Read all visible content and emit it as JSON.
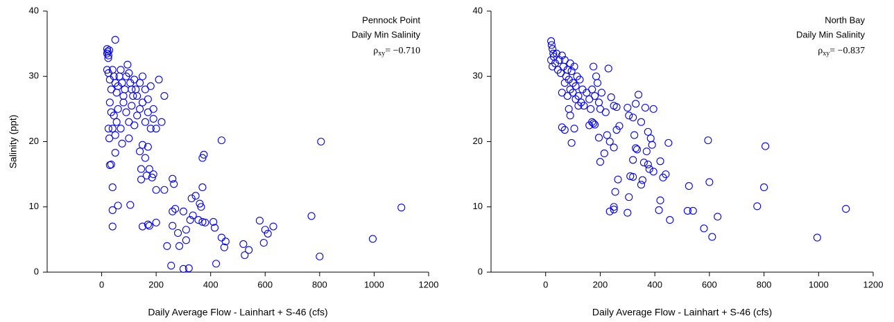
{
  "chart_data": [
    {
      "type": "scatter",
      "color": "#0000ff",
      "xlabel": "Daily Average Flow - Lainhart + S-46 (cfs)",
      "ylabel": "Salinity (ppt)",
      "annotations": [
        "Pennock Point",
        "Daily Min Salinity"
      ],
      "rho": {
        "symbol": "ρ",
        "subscript": "xy",
        "text": "= −0.710"
      },
      "xlim": [
        -200,
        1200
      ],
      "ylim": [
        0,
        40
      ],
      "xticks": [
        0,
        200,
        400,
        600,
        800,
        1000,
        1200
      ],
      "yticks": [
        0,
        10,
        20,
        30,
        40
      ],
      "x": [
        20,
        22,
        25,
        24,
        28,
        20,
        50,
        20,
        25,
        30,
        35,
        40,
        45,
        50,
        55,
        60,
        65,
        70,
        75,
        80,
        85,
        90,
        95,
        100,
        105,
        110,
        115,
        120,
        125,
        130,
        140,
        150,
        160,
        170,
        180,
        190,
        210,
        230,
        30,
        35,
        40,
        45,
        50,
        55,
        60,
        70,
        80,
        90,
        100,
        110,
        120,
        130,
        140,
        150,
        160,
        170,
        180,
        190,
        200,
        220,
        25,
        28,
        30,
        35,
        50,
        75,
        100,
        140,
        150,
        160,
        170,
        175,
        165,
        145,
        145,
        185,
        190,
        200,
        230,
        260,
        265,
        40,
        40,
        40,
        60,
        105,
        150,
        170,
        175,
        200,
        240,
        255,
        260,
        270,
        260,
        280,
        285,
        300,
        300,
        310,
        310,
        320,
        325,
        330,
        335,
        345,
        355,
        360,
        365,
        370,
        370,
        375,
        370,
        380,
        415,
        410,
        420,
        440,
        440,
        450,
        455,
        520,
        525,
        540,
        580,
        595,
        600,
        610,
        630,
        770,
        800,
        805,
        995,
        1100
      ],
      "y": [
        34.2,
        33.8,
        33.2,
        32.8,
        34,
        33.5,
        35.6,
        31,
        30.5,
        29.5,
        28,
        31,
        30,
        29,
        27.5,
        28.5,
        30,
        31,
        29,
        27,
        28,
        30,
        31.8,
        30.5,
        29,
        28,
        27,
        29.5,
        28,
        27,
        29,
        30,
        28,
        26.5,
        28.5,
        25,
        29.5,
        27,
        26,
        24.5,
        22,
        24,
        21,
        23,
        25,
        22,
        26,
        24.5,
        23,
        25.5,
        22.5,
        24,
        25,
        26,
        23,
        24.5,
        22,
        23.5,
        22,
        23,
        22,
        20.5,
        16.4,
        16.5,
        18.3,
        19.7,
        20.5,
        18.5,
        19.5,
        17.5,
        19.2,
        15.8,
        14.8,
        15.8,
        14.2,
        14.5,
        15,
        12.6,
        12.6,
        14.3,
        13.5,
        13,
        9.5,
        7,
        10.2,
        10.3,
        7,
        7.3,
        7.1,
        7.6,
        4,
        1,
        9.3,
        9.7,
        7.1,
        6,
        4,
        0.5,
        9.3,
        6.5,
        4.9,
        0.6,
        8,
        11.3,
        8.7,
        11.7,
        8,
        10.5,
        10,
        7.7,
        17.5,
        18,
        13,
        7.6,
        6.8,
        7.7,
        1.3,
        5.3,
        20.2,
        3.8,
        4.7,
        4.3,
        2.6,
        3.4,
        7.9,
        4.5,
        6.5,
        5.9,
        7,
        8.6,
        2.4,
        20,
        5.1,
        9.9
      ]
    },
    {
      "type": "scatter",
      "color": "#0000ff",
      "xlabel": "Daily Average Flow - Lainhart + S-46 (cfs)",
      "annotations": [
        "North Bay",
        "Daily Min Salinity"
      ],
      "rho": {
        "symbol": "ρ",
        "subscript": "xy",
        "text": "= −0.837"
      },
      "xlim": [
        -200,
        1200
      ],
      "ylim": [
        0,
        40
      ],
      "xticks": [
        0,
        200,
        400,
        600,
        800,
        1000,
        1200
      ],
      "yticks": [
        0,
        10,
        20,
        30,
        40
      ],
      "x": [
        20,
        22,
        25,
        28,
        30,
        20,
        25,
        35,
        40,
        45,
        50,
        55,
        60,
        65,
        70,
        75,
        80,
        85,
        90,
        95,
        100,
        105,
        110,
        115,
        120,
        125,
        130,
        135,
        140,
        150,
        160,
        165,
        170,
        175,
        180,
        185,
        190,
        195,
        200,
        205,
        220,
        230,
        240,
        250,
        260,
        60,
        70,
        80,
        90,
        100,
        110,
        120,
        85,
        90,
        60,
        70,
        95,
        105,
        160,
        170,
        175,
        180,
        195,
        200,
        215,
        225,
        235,
        250,
        260,
        270,
        300,
        305,
        320,
        325,
        330,
        340,
        350,
        365,
        375,
        385,
        395,
        370,
        375,
        380,
        390,
        395,
        360,
        355,
        350,
        330,
        335,
        320,
        320,
        310,
        305,
        300,
        265,
        255,
        250,
        235,
        250,
        420,
        420,
        415,
        430,
        440,
        450,
        455,
        520,
        525,
        540,
        580,
        595,
        600,
        610,
        630,
        775,
        800,
        805,
        995,
        1100
      ],
      "y": [
        35.4,
        34.8,
        34.2,
        33.5,
        33,
        32.5,
        31.5,
        32,
        33.5,
        31,
        32.5,
        30.5,
        33.2,
        31.5,
        32.5,
        30,
        31,
        29.5,
        32,
        30.8,
        29,
        31.5,
        28.5,
        30,
        27,
        29.5,
        26,
        28,
        25.5,
        27.5,
        26.5,
        25,
        28,
        31.5,
        27,
        30,
        29,
        26,
        25,
        27.5,
        24.5,
        31.2,
        26.8,
        25.5,
        25.3,
        27.5,
        29,
        27,
        28,
        27.5,
        26.5,
        25.5,
        25,
        24,
        22.2,
        21.8,
        19.8,
        22,
        22.5,
        23,
        22.8,
        22.6,
        20.6,
        16.9,
        18.2,
        21,
        20,
        19.1,
        21.8,
        22.4,
        25.2,
        24,
        23.7,
        21,
        25.8,
        27.2,
        23,
        25.2,
        21.5,
        20.5,
        25,
        18.5,
        16.5,
        15.8,
        19.5,
        15.4,
        16.8,
        14.1,
        13.4,
        19,
        18.8,
        17.2,
        14.6,
        14.7,
        11.5,
        9.1,
        14.2,
        12.3,
        10,
        9.3,
        9.6,
        17,
        11,
        9.5,
        14.5,
        15,
        19.8,
        8,
        9.4,
        13.2,
        9.4,
        6.7,
        20.2,
        13.8,
        5.4,
        8.5,
        10.1,
        13,
        19.3,
        5.3,
        9.7
      ]
    }
  ]
}
